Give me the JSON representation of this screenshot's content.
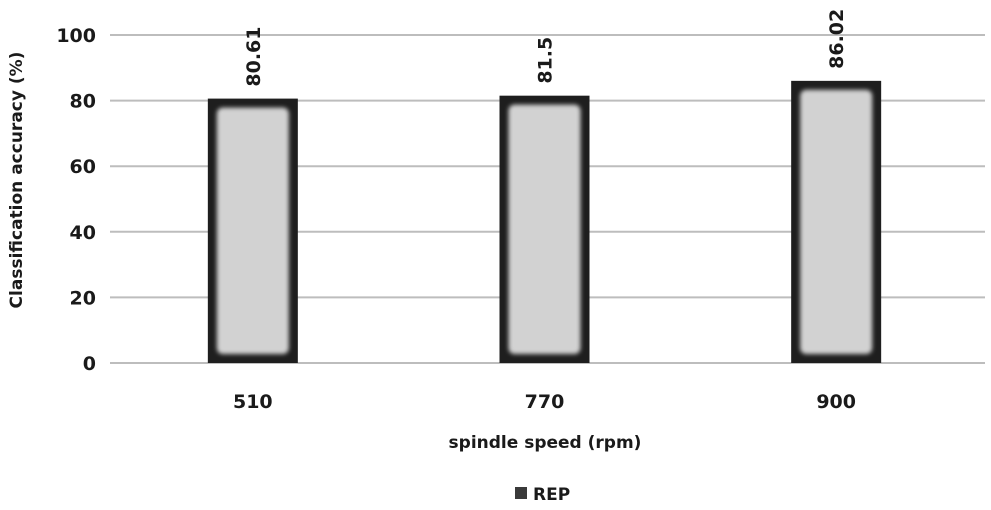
{
  "chart_data": {
    "type": "bar",
    "title": "",
    "xlabel": "spindle speed (rpm)",
    "ylabel": "Classification accuracy (%)",
    "categories": [
      "510",
      "770",
      "900"
    ],
    "series": [
      {
        "name": "REP",
        "values": [
          80.61,
          81.5,
          86.02
        ],
        "labels": [
          "80.61",
          "81.5",
          "86.02"
        ]
      }
    ],
    "ylim": [
      0,
      100
    ],
    "yticks": [
      0,
      20,
      40,
      60,
      80,
      100
    ],
    "grid": true,
    "legend_position": "bottom",
    "colors": {
      "bar_fill": "#d2d2d2",
      "bar_border": "#1e1e1e",
      "grid": "#bdbdbd",
      "legend_swatch": "#3a3a3a",
      "text": "#1a1a1a"
    }
  }
}
